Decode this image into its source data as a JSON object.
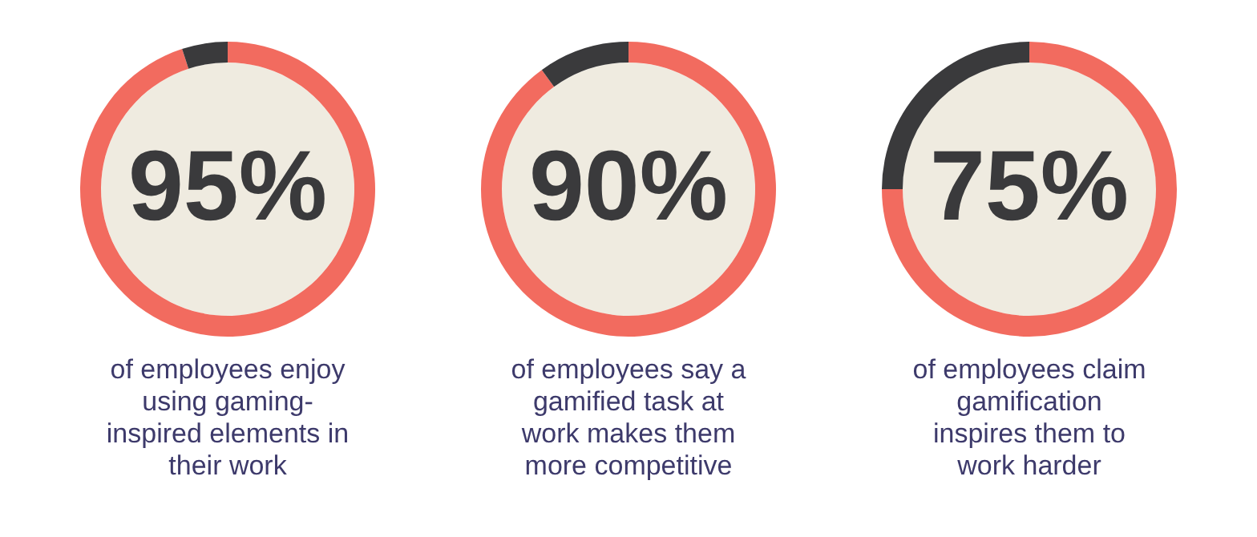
{
  "chart_data": [
    {
      "type": "donut",
      "categories": [
        null,
        null
      ],
      "values": [
        95,
        5
      ],
      "colors": [
        "#f26b5f",
        "#3a3a3c"
      ],
      "value_labels": [
        "95%",
        null
      ],
      "annotations": [
        "of employees enjoy\nusing gaming-\ninspired elements in\ntheir work"
      ]
    },
    {
      "type": "donut",
      "categories": [
        null,
        null
      ],
      "values": [
        90,
        10
      ],
      "colors": [
        "#f26b5f",
        "#3a3a3c"
      ],
      "value_labels": [
        "90%",
        null
      ],
      "annotations": [
        "of employees say a\ngamified task at\nwork makes them\nmore competitive"
      ]
    },
    {
      "type": "donut",
      "categories": [
        null,
        null
      ],
      "values": [
        75,
        25
      ],
      "colors": [
        "#f26b5f",
        "#3a3a3c"
      ],
      "value_labels": [
        "75%",
        null
      ],
      "annotations": [
        "of employees claim\ngamification\ninspires them to\nwork harder"
      ]
    }
  ]
}
